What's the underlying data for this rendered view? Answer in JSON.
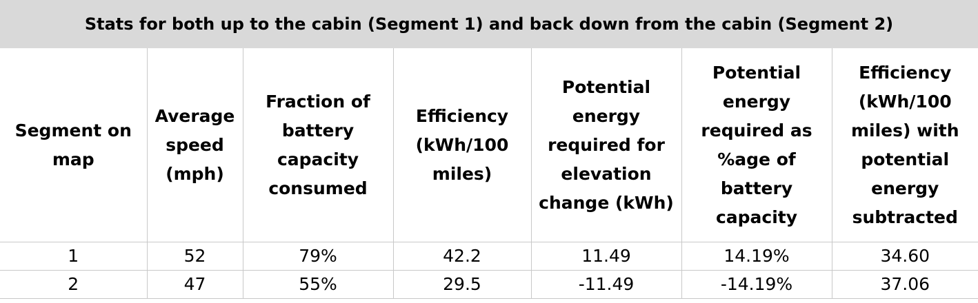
{
  "title": "Stats for both up to the cabin (Segment 1) and back down from the cabin (Segment 2)",
  "headers": [
    "Segment on map",
    "Average speed (mph)",
    "Fraction of battery capacity consumed",
    "Efficiency (kWh/100 miles)",
    "Potential energy required for elevation change (kWh)",
    "Potential energy required as %age of battery capacity",
    "Efficiency (kWh/100 miles) with potential energy subtracted"
  ],
  "rows": [
    [
      "1",
      "52",
      "79%",
      "42.2",
      "11.49",
      "14.19%",
      "34.60"
    ],
    [
      "2",
      "47",
      "55%",
      "29.5",
      "-11.49",
      "-14.19%",
      "37.06"
    ]
  ],
  "colors": {
    "title_background": "#d9d9d9",
    "grid": "#c8c8c8"
  }
}
